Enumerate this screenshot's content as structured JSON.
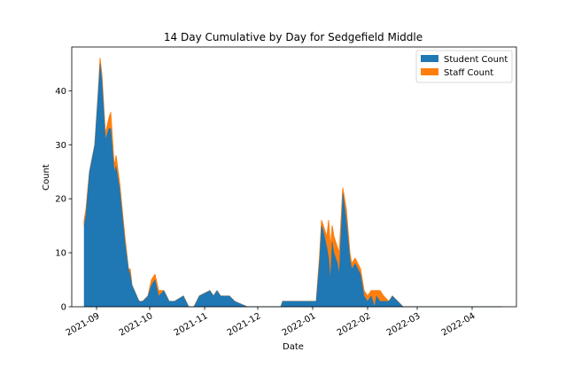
{
  "chart_data": {
    "type": "area",
    "stacked": true,
    "title": "14 Day Cumulative by Day for Sedgefield Middle",
    "xlabel": "Date",
    "ylabel": "Count",
    "ylim": [
      0,
      48.1
    ],
    "xlim": [
      "2021-08-18",
      "2022-04-26"
    ],
    "yticks": [
      0,
      10,
      20,
      30,
      40
    ],
    "xticks": [
      "2021-09-01",
      "2021-10-01",
      "2021-11-01",
      "2021-12-01",
      "2022-01-01",
      "2022-02-01",
      "2022-03-01",
      "2022-04-01"
    ],
    "xtick_labels": [
      "2021-09",
      "2021-10",
      "2021-11",
      "2021-12",
      "2022-01",
      "2022-02",
      "2022-03",
      "2022-04"
    ],
    "legend_position": "upper right",
    "grid": false,
    "series": [
      {
        "name": "Student Count",
        "color": "#1f77b4",
        "points": [
          [
            "2021-08-25",
            15
          ],
          [
            "2021-08-26",
            17
          ],
          [
            "2021-08-28",
            25
          ],
          [
            "2021-08-31",
            30
          ],
          [
            "2021-09-02",
            40
          ],
          [
            "2021-09-03",
            45
          ],
          [
            "2021-09-04",
            42
          ],
          [
            "2021-09-06",
            31
          ],
          [
            "2021-09-08",
            33
          ],
          [
            "2021-09-09",
            33
          ],
          [
            "2021-09-11",
            25
          ],
          [
            "2021-09-12",
            26
          ],
          [
            "2021-09-14",
            22
          ],
          [
            "2021-09-17",
            12
          ],
          [
            "2021-09-19",
            7
          ],
          [
            "2021-09-20",
            6
          ],
          [
            "2021-09-21",
            4
          ],
          [
            "2021-09-25",
            1
          ],
          [
            "2021-09-27",
            1
          ],
          [
            "2021-09-30",
            2
          ],
          [
            "2021-10-02",
            4
          ],
          [
            "2021-10-04",
            5
          ],
          [
            "2021-10-06",
            2
          ],
          [
            "2021-10-09",
            3
          ],
          [
            "2021-10-12",
            1
          ],
          [
            "2021-10-15",
            1
          ],
          [
            "2021-10-20",
            2
          ],
          [
            "2021-10-23",
            0
          ],
          [
            "2021-10-26",
            0
          ],
          [
            "2021-10-29",
            2
          ],
          [
            "2021-11-04",
            3
          ],
          [
            "2021-11-06",
            2
          ],
          [
            "2021-11-08",
            3
          ],
          [
            "2021-11-10",
            2
          ],
          [
            "2021-11-15",
            2
          ],
          [
            "2021-11-18",
            1
          ],
          [
            "2021-11-25",
            0
          ],
          [
            "2021-12-14",
            0
          ],
          [
            "2021-12-15",
            1
          ],
          [
            "2021-12-31",
            1
          ],
          [
            "2022-01-03",
            1
          ],
          [
            "2022-01-05",
            9
          ],
          [
            "2022-01-06",
            15
          ],
          [
            "2022-01-07",
            14
          ],
          [
            "2022-01-09",
            11
          ],
          [
            "2022-01-10",
            9
          ],
          [
            "2022-01-11",
            5
          ],
          [
            "2022-01-12",
            12
          ],
          [
            "2022-01-13",
            10
          ],
          [
            "2022-01-15",
            8
          ],
          [
            "2022-01-16",
            6
          ],
          [
            "2022-01-18",
            21
          ],
          [
            "2022-01-20",
            16
          ],
          [
            "2022-01-22",
            9
          ],
          [
            "2022-01-23",
            7
          ],
          [
            "2022-01-25",
            8
          ],
          [
            "2022-01-28",
            6
          ],
          [
            "2022-01-30",
            2
          ],
          [
            "2022-02-01",
            1
          ],
          [
            "2022-02-03",
            2
          ],
          [
            "2022-02-05",
            0
          ],
          [
            "2022-02-06",
            2
          ],
          [
            "2022-02-08",
            1
          ],
          [
            "2022-02-10",
            1
          ],
          [
            "2022-02-13",
            1
          ],
          [
            "2022-02-15",
            2
          ],
          [
            "2022-02-18",
            1
          ],
          [
            "2022-02-21",
            0
          ],
          [
            "2022-04-18",
            0
          ]
        ]
      },
      {
        "name": "Staff Count",
        "color": "#ff7f0e",
        "points": [
          [
            "2021-08-25",
            1
          ],
          [
            "2021-08-26",
            1
          ],
          [
            "2021-08-28",
            0
          ],
          [
            "2021-08-31",
            0
          ],
          [
            "2021-09-02",
            0
          ],
          [
            "2021-09-03",
            1
          ],
          [
            "2021-09-04",
            1
          ],
          [
            "2021-09-06",
            1
          ],
          [
            "2021-09-08",
            2
          ],
          [
            "2021-09-09",
            3
          ],
          [
            "2021-09-11",
            1
          ],
          [
            "2021-09-12",
            2
          ],
          [
            "2021-09-14",
            1
          ],
          [
            "2021-09-17",
            1
          ],
          [
            "2021-09-19",
            0
          ],
          [
            "2021-09-20",
            1
          ],
          [
            "2021-09-21",
            0
          ],
          [
            "2021-09-25",
            0
          ],
          [
            "2021-09-27",
            0
          ],
          [
            "2021-09-30",
            0
          ],
          [
            "2021-10-02",
            1
          ],
          [
            "2021-10-04",
            1
          ],
          [
            "2021-10-06",
            1
          ],
          [
            "2021-10-09",
            0
          ],
          [
            "2021-10-12",
            0
          ],
          [
            "2021-10-15",
            0
          ],
          [
            "2021-10-20",
            0
          ],
          [
            "2021-10-23",
            0
          ],
          [
            "2021-10-26",
            0
          ],
          [
            "2021-10-29",
            0
          ],
          [
            "2021-11-04",
            0
          ],
          [
            "2021-11-06",
            0
          ],
          [
            "2021-11-08",
            0
          ],
          [
            "2021-11-10",
            0
          ],
          [
            "2021-11-15",
            0
          ],
          [
            "2021-11-18",
            0
          ],
          [
            "2021-11-25",
            0
          ],
          [
            "2021-12-14",
            0
          ],
          [
            "2021-12-15",
            0
          ],
          [
            "2021-12-31",
            0
          ],
          [
            "2022-01-03",
            0
          ],
          [
            "2022-01-05",
            1
          ],
          [
            "2022-01-06",
            1
          ],
          [
            "2022-01-07",
            1
          ],
          [
            "2022-01-09",
            2
          ],
          [
            "2022-01-10",
            7
          ],
          [
            "2022-01-11",
            6
          ],
          [
            "2022-01-12",
            3
          ],
          [
            "2022-01-13",
            3
          ],
          [
            "2022-01-15",
            3
          ],
          [
            "2022-01-16",
            4
          ],
          [
            "2022-01-18",
            1
          ],
          [
            "2022-01-20",
            2
          ],
          [
            "2022-01-22",
            1
          ],
          [
            "2022-01-23",
            1
          ],
          [
            "2022-01-25",
            1
          ],
          [
            "2022-01-28",
            1
          ],
          [
            "2022-01-30",
            1
          ],
          [
            "2022-02-01",
            1
          ],
          [
            "2022-02-03",
            1
          ],
          [
            "2022-02-05",
            3
          ],
          [
            "2022-02-06",
            1
          ],
          [
            "2022-02-08",
            2
          ],
          [
            "2022-02-10",
            1
          ],
          [
            "2022-02-13",
            0
          ],
          [
            "2022-02-15",
            0
          ],
          [
            "2022-02-18",
            0
          ],
          [
            "2022-02-21",
            0
          ],
          [
            "2022-04-18",
            0
          ]
        ]
      }
    ]
  }
}
